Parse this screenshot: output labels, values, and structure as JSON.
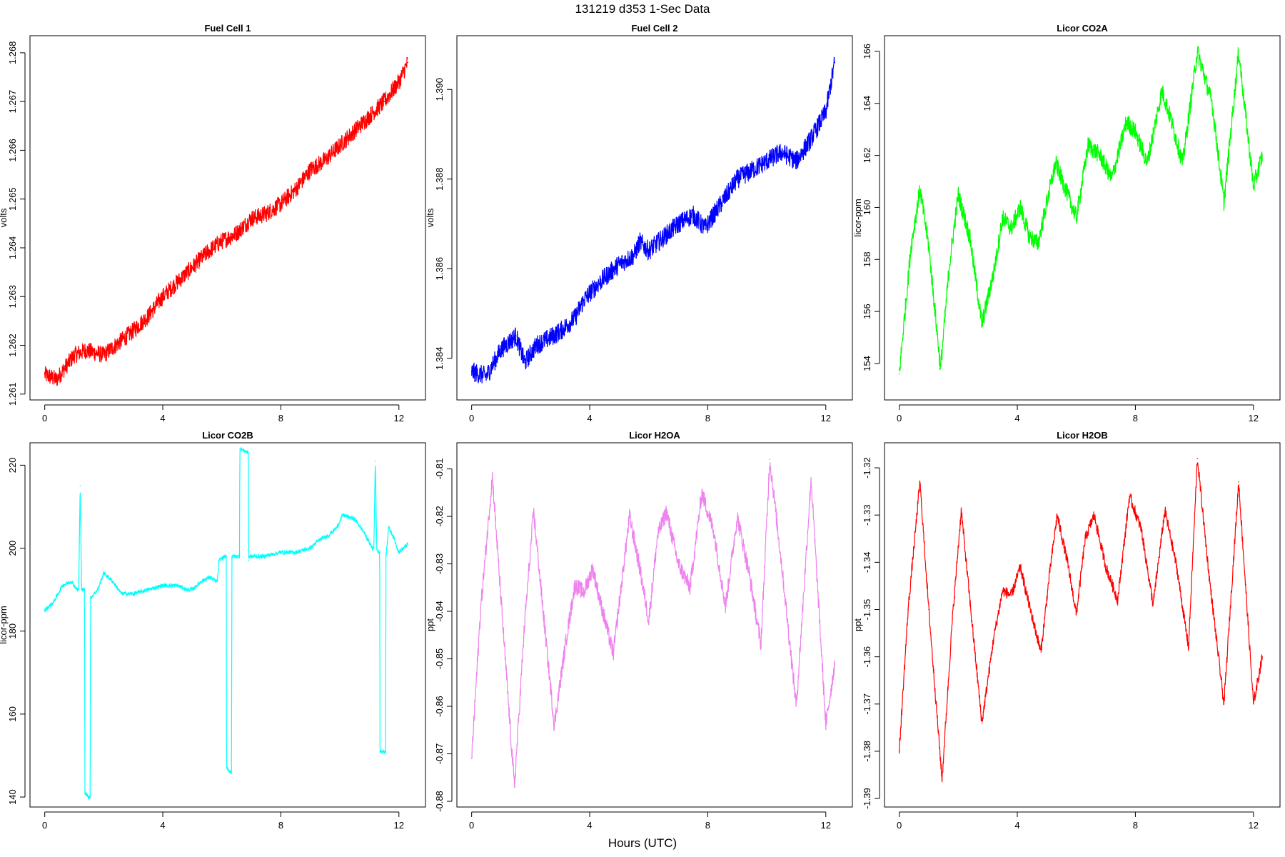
{
  "figure": {
    "title": "131219   d353   1-Sec Data",
    "xlabel": "Hours (UTC)"
  },
  "chart_data": [
    {
      "type": "line",
      "title": "Fuel Cell 1",
      "ylabel": "volts",
      "xlabel": "",
      "xlim": [
        -0.5,
        12.9
      ],
      "ylim": [
        1.26088,
        1.26835
      ],
      "xticks": [
        0,
        4,
        8,
        12
      ],
      "yticks": [
        1.261,
        1.262,
        1.263,
        1.264,
        1.265,
        1.266,
        1.267,
        1.268
      ],
      "ytick_labels": [
        "1.261",
        "1.262",
        "1.263",
        "1.264",
        "1.265",
        "1.266",
        "1.267",
        "1.268"
      ],
      "color": "#ff0000",
      "noise": 0.00018,
      "x": [
        0,
        0.4,
        1.0,
        1.4,
        2.0,
        2.4,
        3.0,
        3.5,
        4.0,
        4.5,
        5.0,
        5.5,
        5.9,
        6.5,
        7.0,
        7.5,
        8.0,
        8.5,
        9.0,
        9.5,
        10.0,
        10.5,
        11.0,
        11.5,
        12.0,
        12.3
      ],
      "values": [
        1.2614,
        1.2613,
        1.2618,
        1.2619,
        1.2618,
        1.262,
        1.2623,
        1.2626,
        1.263,
        1.2633,
        1.2636,
        1.2639,
        1.2641,
        1.2643,
        1.2646,
        1.2647,
        1.2649,
        1.2652,
        1.2656,
        1.2658,
        1.2661,
        1.2664,
        1.2667,
        1.267,
        1.2674,
        1.2678
      ],
      "grid": false,
      "legend": "none"
    },
    {
      "type": "line",
      "title": "Fuel Cell 2",
      "ylabel": "volts",
      "xlabel": "",
      "xlim": [
        -0.5,
        12.9
      ],
      "ylim": [
        1.38307,
        1.3912
      ],
      "xticks": [
        0,
        4,
        8,
        12
      ],
      "yticks": [
        1.384,
        1.386,
        1.388,
        1.39
      ],
      "ytick_labels": [
        "1.384",
        "1.386",
        "1.388",
        "1.390"
      ],
      "color": "#0000ff",
      "noise": 0.00022,
      "x": [
        0,
        0.5,
        1.0,
        1.5,
        1.8,
        2.2,
        2.5,
        3.0,
        3.5,
        3.8,
        4.2,
        4.5,
        5.0,
        5.5,
        5.7,
        6.0,
        6.5,
        7.0,
        7.5,
        7.9,
        8.2,
        8.6,
        9.0,
        9.5,
        10.0,
        10.5,
        11.0,
        11.5,
        12.0,
        12.3
      ],
      "values": [
        1.3837,
        1.3836,
        1.3842,
        1.3845,
        1.3839,
        1.3843,
        1.3844,
        1.3846,
        1.3849,
        1.3853,
        1.3856,
        1.3858,
        1.3861,
        1.3863,
        1.3866,
        1.3864,
        1.3867,
        1.387,
        1.3872,
        1.3869,
        1.3872,
        1.3876,
        1.388,
        1.3882,
        1.3884,
        1.3886,
        1.3884,
        1.3889,
        1.3895,
        1.3906
      ],
      "grid": false,
      "legend": "none"
    },
    {
      "type": "line",
      "title": "Licor CO2A",
      "ylabel": "licor-ppm",
      "xlabel": "",
      "xlim": [
        -0.5,
        12.9
      ],
      "ylim": [
        152.6,
        166.6
      ],
      "xticks": [
        0,
        4,
        8,
        12
      ],
      "yticks": [
        154,
        156,
        158,
        160,
        162,
        164,
        166
      ],
      "ytick_labels": [
        "154",
        "156",
        "158",
        "160",
        "162",
        "164",
        "166"
      ],
      "color": "#00ff00",
      "noise": 0.35,
      "x": [
        0,
        0.4,
        0.7,
        1.0,
        1.4,
        1.7,
        2.0,
        2.4,
        2.8,
        3.2,
        3.5,
        3.8,
        4.1,
        4.4,
        4.7,
        5.0,
        5.3,
        5.6,
        6.0,
        6.4,
        6.8,
        7.2,
        7.7,
        8.0,
        8.4,
        8.9,
        9.2,
        9.6,
        10.1,
        10.6,
        11.0,
        11.5,
        12.0,
        12.3
      ],
      "values": [
        153.6,
        158.5,
        160.7,
        158.5,
        153.8,
        157.8,
        160.5,
        158.8,
        155.5,
        157.5,
        159.6,
        159.2,
        160.0,
        158.9,
        158.6,
        160.2,
        161.7,
        160.8,
        159.6,
        162.4,
        162.0,
        161.1,
        163.3,
        162.9,
        161.7,
        164.5,
        163.4,
        161.7,
        166.0,
        164.0,
        160.2,
        166.0,
        160.8,
        162.0
      ],
      "grid": false,
      "legend": "none"
    },
    {
      "type": "line",
      "title": "Licor CO2B",
      "ylabel": "licor-ppm",
      "xlabel": "",
      "xlim": [
        -0.5,
        12.9
      ],
      "ylim": [
        137.6,
        225.4
      ],
      "xticks": [
        0,
        4,
        8,
        12
      ],
      "yticks": [
        140,
        160,
        180,
        200,
        220
      ],
      "ytick_labels": [
        "140",
        "160",
        "180",
        "200",
        "220"
      ],
      "color": "#00ffff",
      "noise": 0.5,
      "x": [
        0.0,
        0.3,
        0.6,
        0.9,
        1.1,
        1.15,
        1.2,
        1.25,
        1.3,
        1.35,
        1.36,
        1.5,
        1.54,
        1.55,
        1.8,
        2.0,
        2.3,
        2.6,
        3.0,
        3.5,
        4.0,
        4.5,
        4.8,
        5.0,
        5.3,
        5.6,
        5.8,
        5.85,
        5.9,
        6.1,
        6.15,
        6.16,
        6.3,
        6.33,
        6.34,
        6.6,
        6.61,
        6.62,
        6.9,
        6.91,
        6.92,
        7.4,
        8.0,
        8.5,
        9.0,
        9.3,
        9.6,
        9.9,
        10.1,
        10.5,
        10.8,
        11.1,
        11.15,
        11.2,
        11.25,
        11.3,
        11.35,
        11.36,
        11.55,
        11.56,
        11.65,
        11.8,
        12.0,
        12.3
      ],
      "values": [
        185,
        187,
        191,
        192,
        190,
        190,
        215,
        190,
        190,
        190,
        141,
        140,
        140,
        188,
        190,
        194,
        192,
        189,
        189,
        190,
        191,
        191,
        190,
        190,
        192,
        193,
        192,
        192,
        197,
        198,
        198,
        147,
        146,
        146,
        198,
        198,
        224,
        224,
        223,
        197,
        198,
        198,
        199,
        199,
        200,
        202,
        203,
        205,
        208,
        207,
        204,
        200,
        200,
        221,
        200,
        199,
        199,
        151,
        151,
        198,
        205,
        203,
        199,
        201
      ],
      "grid": false,
      "legend": "none"
    },
    {
      "type": "line",
      "title": "Licor H2OA",
      "ylabel": "ppt",
      "xlabel": "",
      "xlim": [
        -0.5,
        12.9
      ],
      "ylim": [
        -0.8812,
        -0.8045
      ],
      "xticks": [
        0,
        4,
        8,
        12
      ],
      "yticks": [
        -0.88,
        -0.87,
        -0.86,
        -0.85,
        -0.84,
        -0.83,
        -0.82,
        -0.81
      ],
      "ytick_labels": [
        "-0.88",
        "-0.87",
        "-0.86",
        "-0.85",
        "-0.84",
        "-0.83",
        "-0.82",
        "-0.81"
      ],
      "color": "#ee82ee",
      "noise": 0.0018,
      "x": [
        0,
        0.3,
        0.7,
        1.0,
        1.45,
        1.8,
        2.1,
        2.5,
        2.8,
        3.2,
        3.5,
        3.8,
        4.1,
        4.4,
        4.8,
        5.1,
        5.35,
        5.7,
        6.0,
        6.3,
        6.6,
        7.0,
        7.4,
        7.8,
        8.2,
        8.6,
        9.0,
        9.4,
        9.8,
        10.1,
        10.5,
        11.0,
        11.5,
        12.0,
        12.3
      ],
      "values": [
        -0.871,
        -0.84,
        -0.8115,
        -0.838,
        -0.877,
        -0.842,
        -0.819,
        -0.845,
        -0.864,
        -0.846,
        -0.8345,
        -0.836,
        -0.831,
        -0.839,
        -0.849,
        -0.833,
        -0.82,
        -0.831,
        -0.842,
        -0.824,
        -0.819,
        -0.83,
        -0.835,
        -0.815,
        -0.823,
        -0.839,
        -0.82,
        -0.832,
        -0.847,
        -0.808,
        -0.83,
        -0.86,
        -0.812,
        -0.864,
        -0.851
      ],
      "grid": false,
      "legend": "none"
    },
    {
      "type": "line",
      "title": "Licor H2OB",
      "ylabel": "ppt",
      "xlabel": "",
      "xlim": [
        -0.5,
        12.9
      ],
      "ylim": [
        -1.3918,
        -1.3147
      ],
      "xticks": [
        0,
        4,
        8,
        12
      ],
      "yticks": [
        -1.39,
        -1.38,
        -1.37,
        -1.36,
        -1.35,
        -1.34,
        -1.33,
        -1.32
      ],
      "ytick_labels": [
        "-1.39",
        "-1.38",
        "-1.37",
        "-1.36",
        "-1.35",
        "-1.34",
        "-1.33",
        "-1.32"
      ],
      "color": "#ff0000",
      "noise": 0.0012,
      "x": [
        0,
        0.3,
        0.7,
        1.0,
        1.45,
        1.8,
        2.1,
        2.5,
        2.8,
        3.2,
        3.5,
        3.8,
        4.1,
        4.4,
        4.8,
        5.1,
        5.35,
        5.7,
        6.0,
        6.3,
        6.6,
        7.0,
        7.4,
        7.8,
        8.2,
        8.6,
        9.0,
        9.4,
        9.8,
        10.1,
        10.5,
        11.0,
        11.5,
        12.0,
        12.3
      ],
      "values": [
        -1.38,
        -1.35,
        -1.323,
        -1.35,
        -1.386,
        -1.352,
        -1.329,
        -1.355,
        -1.374,
        -1.356,
        -1.346,
        -1.347,
        -1.341,
        -1.349,
        -1.359,
        -1.342,
        -1.33,
        -1.34,
        -1.351,
        -1.335,
        -1.33,
        -1.341,
        -1.348,
        -1.326,
        -1.333,
        -1.349,
        -1.329,
        -1.341,
        -1.358,
        -1.318,
        -1.343,
        -1.37,
        -1.323,
        -1.37,
        -1.36
      ],
      "grid": false,
      "legend": "none"
    }
  ]
}
